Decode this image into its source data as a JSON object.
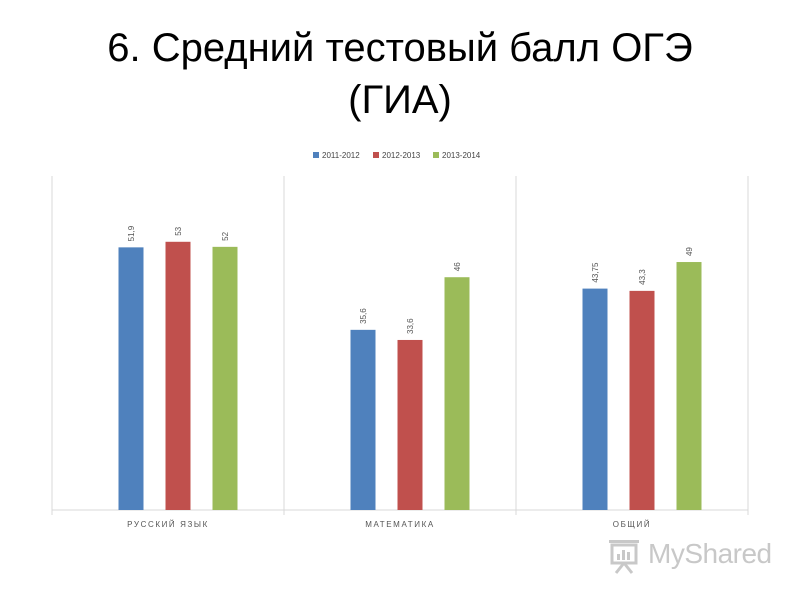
{
  "slide": {
    "title_line1": "6. Средний тестовый балл ОГЭ",
    "title_line2": "(ГИА)"
  },
  "chart_data": {
    "type": "bar",
    "categories": [
      "РУССКИЙ ЯЗЫК",
      "МАТЕМАТИКА",
      "ОБЩИЙ"
    ],
    "series": [
      {
        "name": "2011-2012",
        "color": "#4f81bd",
        "values": [
          51.9,
          35.6,
          43.75
        ],
        "labels": [
          "51,9",
          "35,6",
          "43,75"
        ]
      },
      {
        "name": "2012-2013",
        "color": "#c0504d",
        "values": [
          53,
          33.6,
          43.3
        ],
        "labels": [
          "53",
          "33,6",
          "43,3"
        ]
      },
      {
        "name": "2013-2014",
        "color": "#9bbb59",
        "values": [
          52,
          46,
          49
        ],
        "labels": [
          "52",
          "46",
          "49"
        ]
      }
    ],
    "ylim": [
      0,
      66
    ],
    "grid": false,
    "legend_position": "top-center"
  },
  "watermark": {
    "text": "MyShared",
    "icon": "presentation-board-icon"
  }
}
